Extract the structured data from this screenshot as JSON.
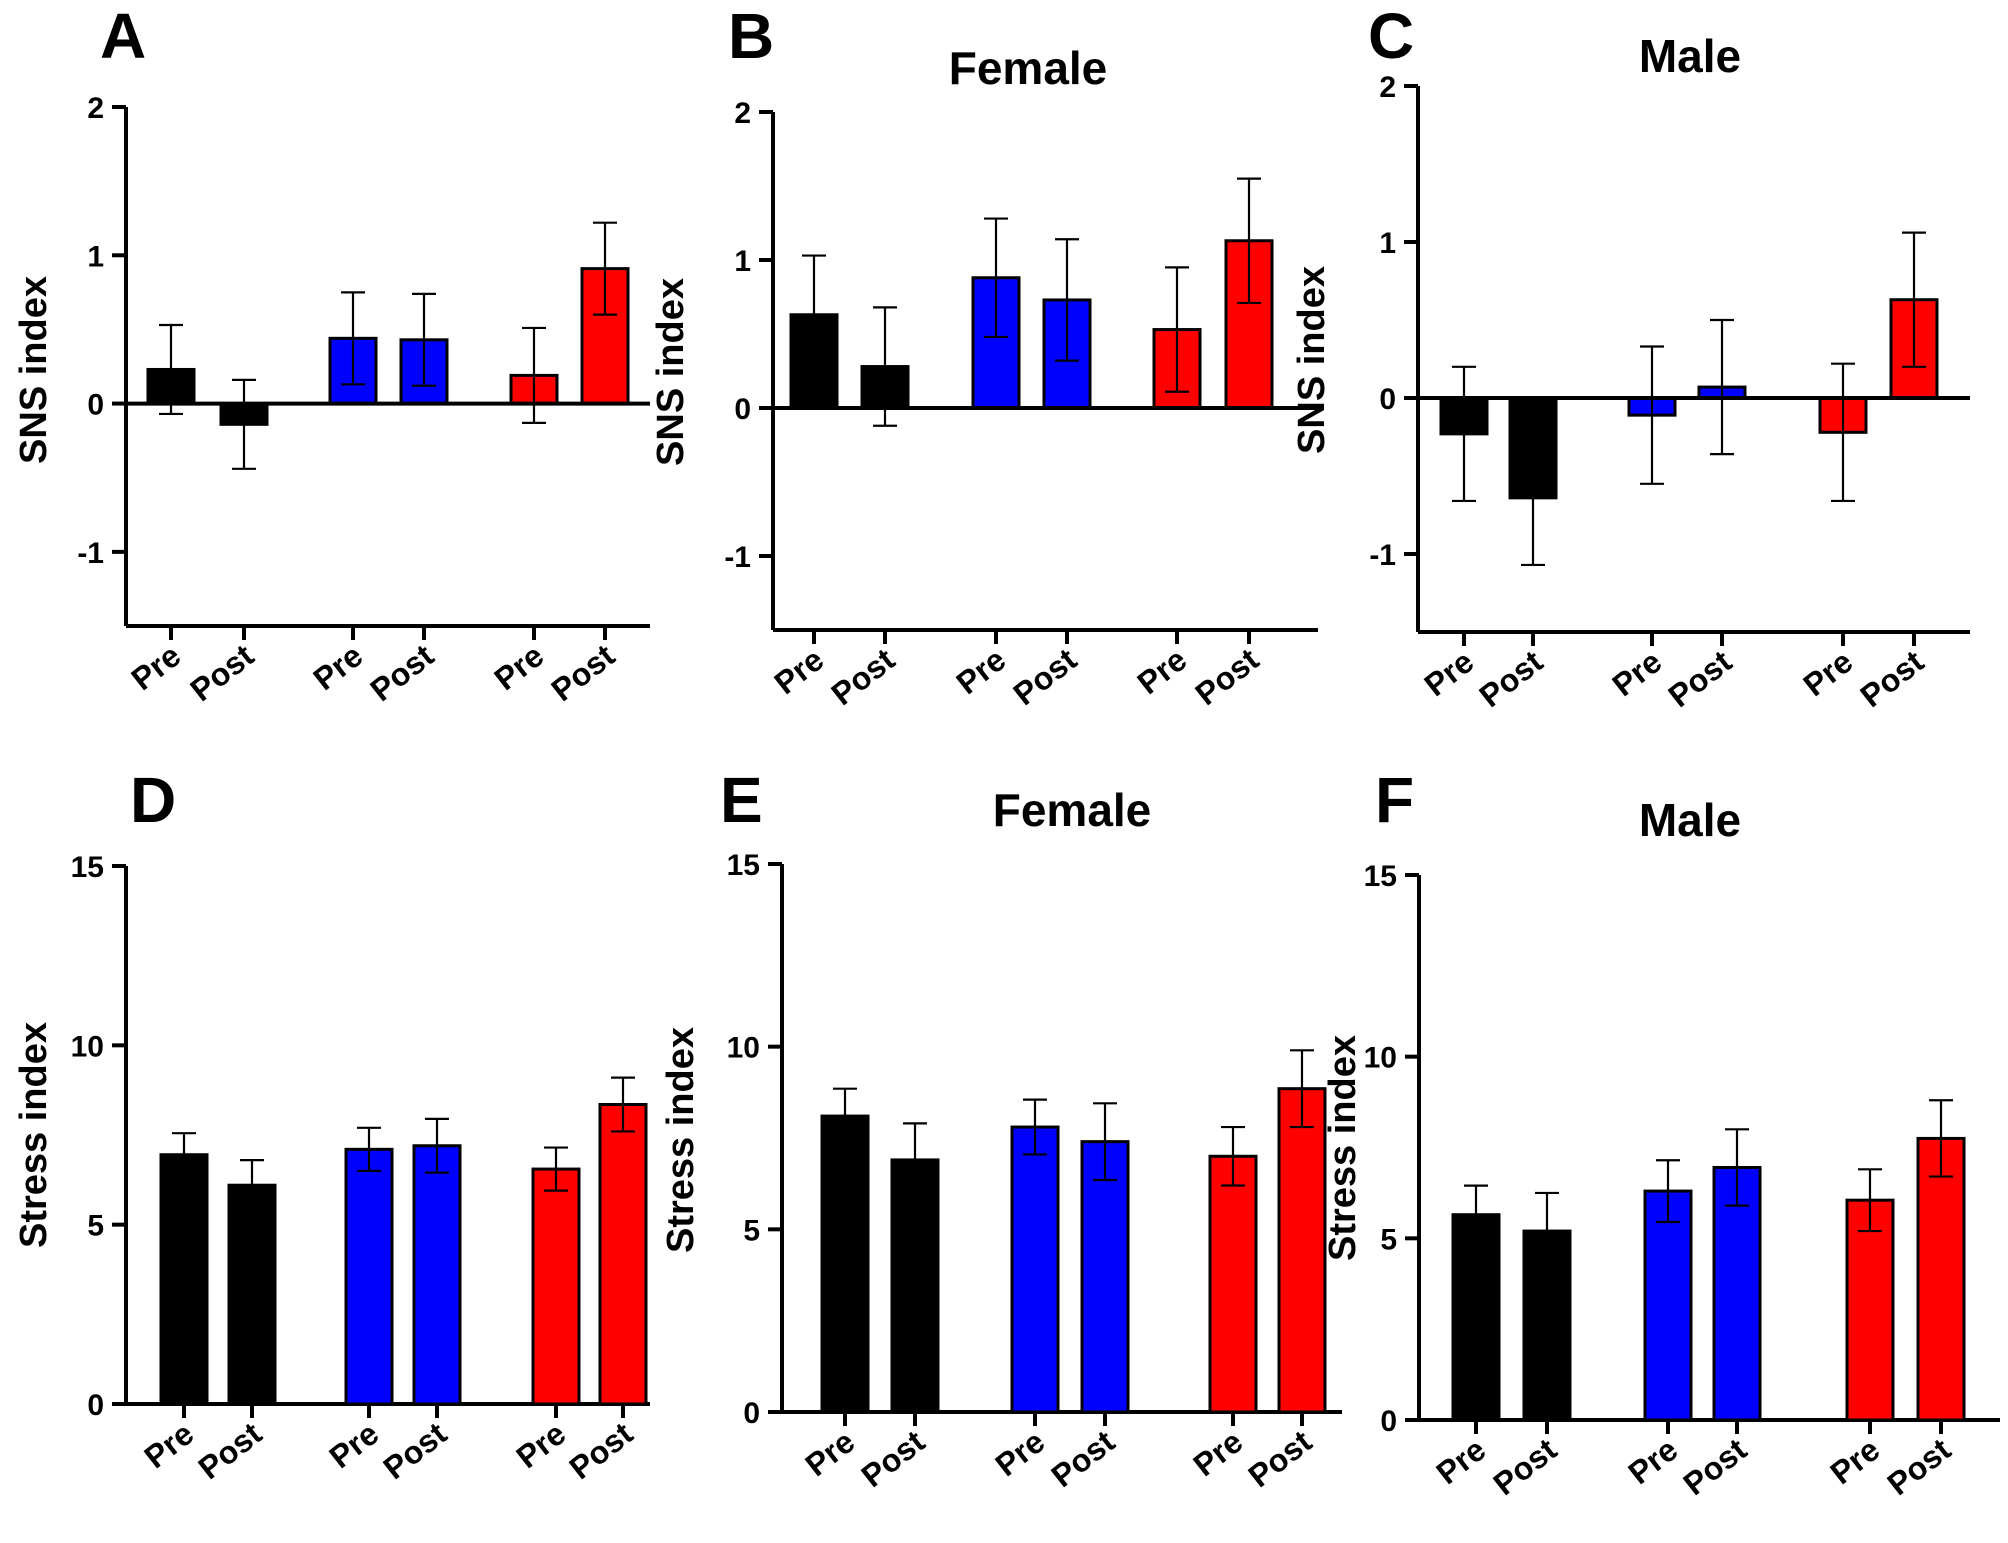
{
  "colors": {
    "black": "#000000",
    "blue": "#0000ff",
    "red": "#ff0000"
  },
  "chart_data": [
    {
      "type": "bar",
      "panel_label": "A",
      "title": "",
      "ylabel": "SNS index",
      "xlabel": "",
      "ylim": [
        -1.5,
        2
      ],
      "yticks": [
        -1,
        0,
        1,
        2
      ],
      "categories": [
        "Pre",
        "Post",
        "Pre",
        "Post",
        "Pre",
        "Post"
      ],
      "groups": [
        "black",
        "black",
        "blue",
        "blue",
        "red",
        "red"
      ],
      "values": [
        0.23,
        -0.14,
        0.44,
        0.43,
        0.19,
        0.91
      ],
      "errors": [
        0.3,
        0.3,
        0.31,
        0.31,
        0.32,
        0.31
      ]
    },
    {
      "type": "bar",
      "panel_label": "B",
      "title": "Female",
      "ylabel": "SNS index",
      "xlabel": "",
      "ylim": [
        -1.5,
        2
      ],
      "yticks": [
        -1,
        0,
        1,
        2
      ],
      "categories": [
        "Pre",
        "Post",
        "Pre",
        "Post",
        "Pre",
        "Post"
      ],
      "groups": [
        "black",
        "black",
        "blue",
        "blue",
        "red",
        "red"
      ],
      "values": [
        0.63,
        0.28,
        0.88,
        0.73,
        0.53,
        1.13
      ],
      "errors": [
        0.4,
        0.4,
        0.4,
        0.41,
        0.42,
        0.42
      ]
    },
    {
      "type": "bar",
      "panel_label": "C",
      "title": "Male",
      "ylabel": "SNS index",
      "xlabel": "",
      "ylim": [
        -1.5,
        2
      ],
      "yticks": [
        -1,
        0,
        1,
        2
      ],
      "categories": [
        "Pre",
        "Post",
        "Pre",
        "Post",
        "Pre",
        "Post"
      ],
      "groups": [
        "black",
        "black",
        "blue",
        "blue",
        "red",
        "red"
      ],
      "values": [
        -0.23,
        -0.64,
        -0.11,
        0.07,
        -0.22,
        0.63
      ],
      "errors": [
        0.43,
        0.43,
        0.44,
        0.43,
        0.44,
        0.43
      ]
    },
    {
      "type": "bar",
      "panel_label": "D",
      "title": "",
      "ylabel": "Stress index",
      "xlabel": "",
      "ylim": [
        0,
        15
      ],
      "yticks": [
        0,
        5,
        10,
        15
      ],
      "categories": [
        "Pre",
        "Post",
        "Pre",
        "Post",
        "Pre",
        "Post"
      ],
      "groups": [
        "black",
        "black",
        "blue",
        "blue",
        "red",
        "red"
      ],
      "values": [
        6.95,
        6.1,
        7.1,
        7.2,
        6.55,
        8.35
      ],
      "errors": [
        0.6,
        0.7,
        0.6,
        0.75,
        0.6,
        0.75
      ]
    },
    {
      "type": "bar",
      "panel_label": "E",
      "title": "Female",
      "ylabel": "Stress index",
      "xlabel": "",
      "ylim": [
        0,
        15
      ],
      "yticks": [
        0,
        5,
        10,
        15
      ],
      "categories": [
        "Pre",
        "Post",
        "Pre",
        "Post",
        "Pre",
        "Post"
      ],
      "groups": [
        "black",
        "black",
        "blue",
        "blue",
        "red",
        "red"
      ],
      "values": [
        8.1,
        6.9,
        7.8,
        7.4,
        7.0,
        8.85
      ],
      "errors": [
        0.75,
        1.0,
        0.75,
        1.05,
        0.8,
        1.05
      ]
    },
    {
      "type": "bar",
      "panel_label": "F",
      "title": "Male",
      "ylabel": "Stress index",
      "xlabel": "",
      "ylim": [
        0,
        15
      ],
      "yticks": [
        0,
        5,
        10,
        15
      ],
      "categories": [
        "Pre",
        "Post",
        "Pre",
        "Post",
        "Pre",
        "Post"
      ],
      "groups": [
        "black",
        "black",
        "blue",
        "blue",
        "red",
        "red"
      ],
      "values": [
        5.65,
        5.2,
        6.3,
        6.95,
        6.05,
        7.75
      ],
      "errors": [
        0.8,
        1.05,
        0.85,
        1.05,
        0.85,
        1.05
      ]
    }
  ]
}
